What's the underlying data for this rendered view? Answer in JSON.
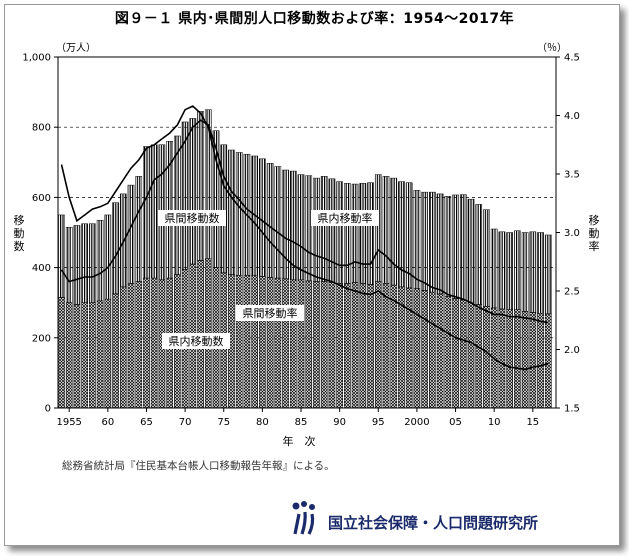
{
  "chart_data": {
    "type": "bar",
    "title": "図９－１ 県内･県間別人口移動数および率：1954～2017年",
    "xlabel": "年　次",
    "ylabel_left": "移\n動\n数",
    "ylabel_right": "移\n動\n率",
    "unit_left": "（万人）",
    "unit_right": "（％）",
    "ylim_left": [
      0,
      1000
    ],
    "ylim_right": [
      1.5,
      4.5
    ],
    "yticks_left": [
      "0",
      "200",
      "400",
      "600",
      "800",
      "1,000"
    ],
    "yticks_right": [
      "1.5",
      "2.0",
      "2.5",
      "3.0",
      "3.5",
      "4.0",
      "4.5"
    ],
    "xtick_labels": [
      "1955",
      "60",
      "65",
      "70",
      "75",
      "80",
      "85",
      "90",
      "95",
      "2000",
      "05",
      "10",
      "15"
    ],
    "xtick_years": [
      1955,
      1960,
      1965,
      1970,
      1975,
      1980,
      1985,
      1990,
      1995,
      2000,
      2005,
      2010,
      2015
    ],
    "years": [
      1954,
      1955,
      1956,
      1957,
      1958,
      1959,
      1960,
      1961,
      1962,
      1963,
      1964,
      1965,
      1966,
      1967,
      1968,
      1969,
      1970,
      1971,
      1972,
      1973,
      1974,
      1975,
      1976,
      1977,
      1978,
      1979,
      1980,
      1981,
      1982,
      1983,
      1984,
      1985,
      1986,
      1987,
      1988,
      1989,
      1990,
      1991,
      1992,
      1993,
      1994,
      1995,
      1996,
      1997,
      1998,
      1999,
      2000,
      2001,
      2002,
      2003,
      2004,
      2005,
      2006,
      2007,
      2008,
      2009,
      2010,
      2011,
      2012,
      2013,
      2014,
      2015,
      2016,
      2017
    ],
    "series": [
      {
        "name": "県内移動数",
        "kind": "bar",
        "values": [
          315,
          300,
          295,
          300,
          300,
          305,
          310,
          325,
          345,
          355,
          360,
          370,
          370,
          365,
          370,
          380,
          395,
          410,
          420,
          425,
          400,
          385,
          380,
          378,
          378,
          378,
          375,
          372,
          370,
          368,
          365,
          365,
          362,
          360,
          360,
          358,
          355,
          355,
          358,
          355,
          352,
          360,
          355,
          350,
          345,
          342,
          340,
          335,
          330,
          325,
          318,
          312,
          308,
          300,
          295,
          290,
          285,
          282,
          280,
          280,
          275,
          272,
          270,
          268
        ]
      },
      {
        "name": "県間移動数",
        "kind": "bar",
        "values": [
          235,
          215,
          225,
          225,
          225,
          230,
          240,
          260,
          265,
          280,
          300,
          375,
          380,
          385,
          390,
          395,
          420,
          415,
          425,
          425,
          390,
          365,
          355,
          350,
          345,
          340,
          335,
          325,
          318,
          310,
          310,
          300,
          300,
          295,
          300,
          295,
          290,
          285,
          280,
          285,
          290,
          305,
          305,
          305,
          300,
          300,
          280,
          280,
          285,
          285,
          285,
          295,
          300,
          295,
          285,
          275,
          225,
          220,
          220,
          225,
          225,
          230,
          230,
          225
        ]
      },
      {
        "name": "県内移動率",
        "kind": "line",
        "axis": "right",
        "values": [
          2.68,
          2.58,
          2.6,
          2.62,
          2.62,
          2.65,
          2.7,
          2.8,
          2.92,
          3.05,
          3.18,
          3.3,
          3.45,
          3.5,
          3.58,
          3.68,
          3.78,
          3.9,
          3.96,
          3.92,
          3.72,
          3.48,
          3.35,
          3.28,
          3.2,
          3.15,
          3.1,
          3.05,
          3.0,
          2.95,
          2.92,
          2.88,
          2.83,
          2.8,
          2.78,
          2.75,
          2.72,
          2.72,
          2.75,
          2.73,
          2.73,
          2.85,
          2.8,
          2.73,
          2.68,
          2.65,
          2.6,
          2.57,
          2.53,
          2.51,
          2.47,
          2.45,
          2.43,
          2.4,
          2.36,
          2.33,
          2.3,
          2.3,
          2.28,
          2.28,
          2.27,
          2.26,
          2.24,
          2.23
        ]
      },
      {
        "name": "県間移動率",
        "kind": "line",
        "axis": "right",
        "values": [
          3.58,
          3.3,
          3.1,
          3.15,
          3.2,
          3.22,
          3.25,
          3.35,
          3.45,
          3.55,
          3.62,
          3.72,
          3.75,
          3.8,
          3.85,
          3.92,
          4.05,
          4.08,
          4.02,
          3.9,
          3.62,
          3.4,
          3.3,
          3.22,
          3.15,
          3.08,
          3.0,
          2.92,
          2.85,
          2.78,
          2.72,
          2.68,
          2.65,
          2.62,
          2.6,
          2.58,
          2.55,
          2.52,
          2.5,
          2.48,
          2.47,
          2.5,
          2.45,
          2.42,
          2.38,
          2.34,
          2.3,
          2.26,
          2.22,
          2.18,
          2.14,
          2.1,
          2.08,
          2.06,
          2.02,
          1.98,
          1.92,
          1.88,
          1.85,
          1.84,
          1.83,
          1.85,
          1.86,
          1.88
        ]
      }
    ],
    "annotations": [
      "県間移動数",
      "県内移動率",
      "県間移動率",
      "県内移動数"
    ],
    "grid": "horizontal dashed"
  },
  "source_note": "総務省統計局『住民基本台帳人口移動報告年報』による。",
  "logo_text": "国立社会保障・人口問題研究所",
  "colors": {
    "bar_fill": "#ffffff",
    "bar_stroke": "#000000",
    "line": "#000000",
    "logo": "#1b2a6b"
  }
}
